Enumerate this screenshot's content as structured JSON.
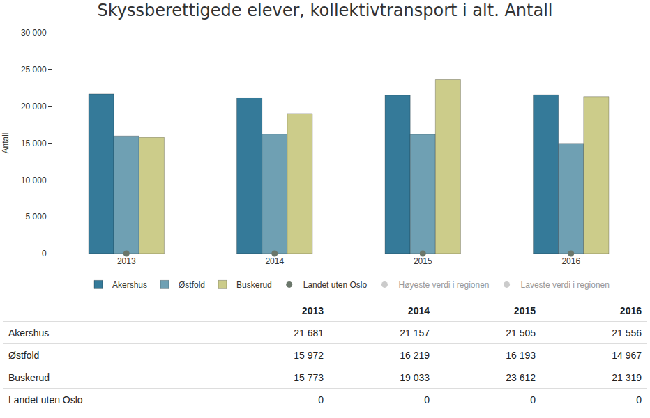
{
  "chart_data": {
    "type": "bar",
    "title": "Skyssberettigede elever, kollektivtransport i alt. Antall",
    "y_label": "Antall",
    "categories": [
      "2013",
      "2014",
      "2015",
      "2016"
    ],
    "series": [
      {
        "name": "Akershus",
        "color": "#357a99",
        "values": [
          21681,
          21157,
          21505,
          21556
        ]
      },
      {
        "name": "Østfold",
        "color": "#6fa0b3",
        "values": [
          15972,
          16219,
          16193,
          14967
        ]
      },
      {
        "name": "Buskerud",
        "color": "#cccc8a",
        "values": [
          15773,
          19033,
          23612,
          21319
        ]
      },
      {
        "name": "Landet uten Oslo",
        "color": "#6b776b",
        "type": "scatter",
        "marker": "circle",
        "values": [
          0,
          0,
          0,
          0
        ]
      },
      {
        "name": "Høyeste verdi i regionen",
        "color": "#999999",
        "type": "scatter",
        "marker": "circle",
        "values": [
          null,
          null,
          null,
          null
        ]
      },
      {
        "name": "Laveste verdi i regionen",
        "color": "#999999",
        "type": "scatter",
        "marker": "circle",
        "values": [
          null,
          null,
          null,
          null
        ]
      }
    ],
    "ylim": [
      0,
      30000
    ],
    "yticks": [
      0,
      {
        "value": 5000,
        "label": "5 000"
      },
      {
        "value": 10000,
        "label": "10 000"
      },
      {
        "value": 15000,
        "label": "15 000"
      },
      {
        "value": 20000,
        "label": "20 000"
      },
      {
        "value": 25000,
        "label": "25 000"
      },
      {
        "value": 30000,
        "label": "30 000"
      }
    ],
    "grid": false,
    "legend": "bottom"
  },
  "table": {
    "header": [
      "",
      "2013",
      "2014",
      "2015",
      "2016"
    ],
    "rows": [
      [
        "Akershus",
        "21 681",
        "21 157",
        "21 505",
        "21 556"
      ],
      [
        "Østfold",
        "15 972",
        "16 219",
        "16 193",
        "14 967"
      ],
      [
        "Buskerud",
        "15 773",
        "19 033",
        "23 612",
        "21 319"
      ],
      [
        "Landet uten Oslo",
        "0",
        "0",
        "0",
        "0"
      ]
    ]
  }
}
